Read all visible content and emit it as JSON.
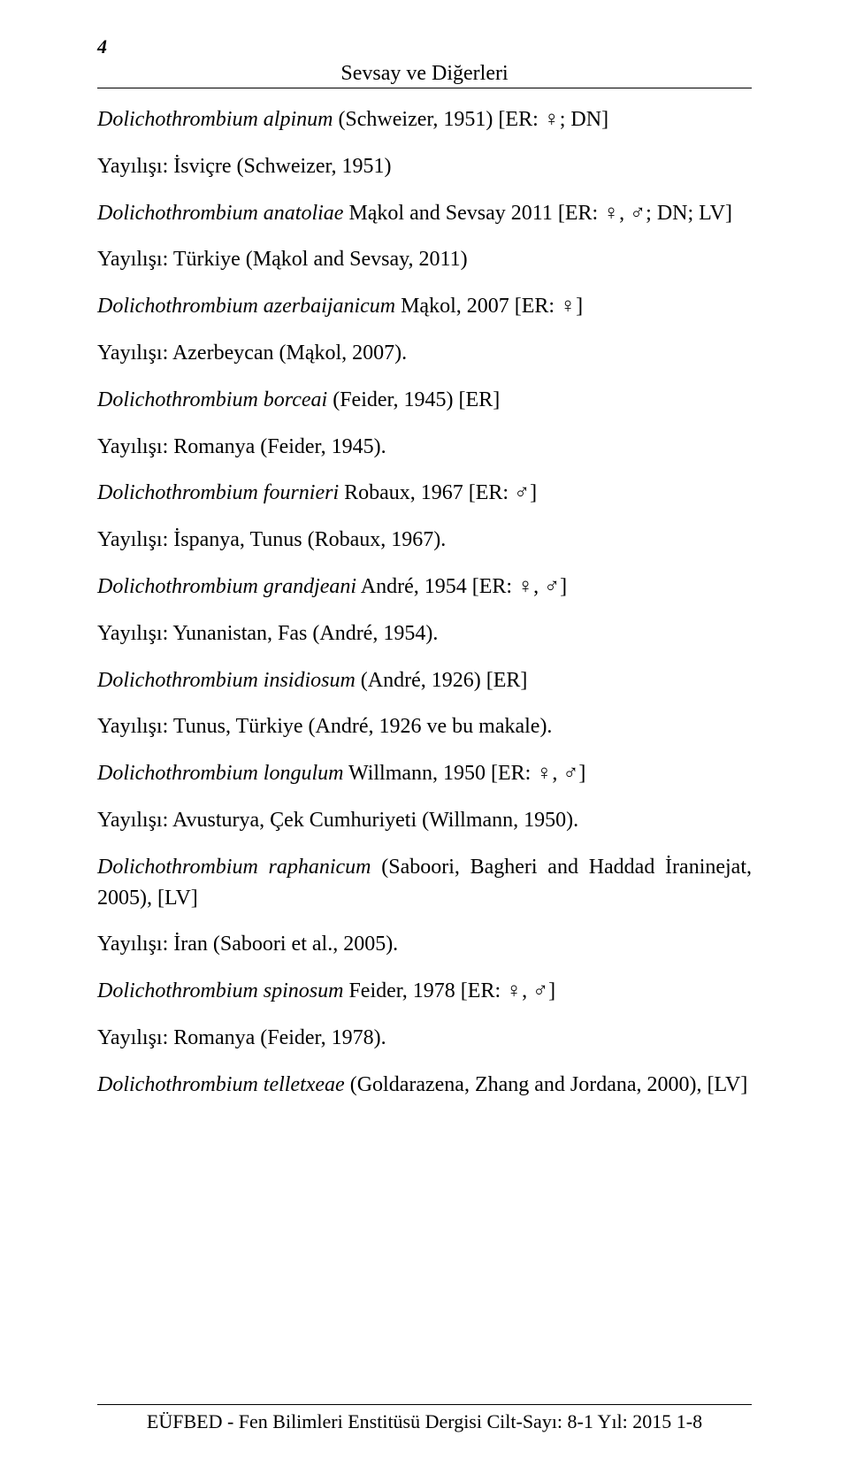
{
  "page_number": "4",
  "running_header": "Sevsay ve Diğerleri",
  "entries": [
    {
      "species": "Dolichothrombium alpinum",
      "rest": " (Schweizer, 1951) [ER: ♀; DN]"
    },
    {
      "plain": "Yayılışı: İsviçre (Schweizer, 1951)"
    },
    {
      "species": "Dolichothrombium anatoliae",
      "rest": " Mąkol and Sevsay 2011 [ER: ♀, ♂; DN; LV]"
    },
    {
      "plain": "Yayılışı: Türkiye (Mąkol and Sevsay, 2011)"
    },
    {
      "species": "Dolichothrombium azerbaijanicum",
      "rest": " Mąkol, 2007 [ER: ♀]"
    },
    {
      "plain": "Yayılışı: Azerbeycan (Mąkol, 2007)."
    },
    {
      "species": "Dolichothrombium borceai",
      "rest": " (Feider, 1945) [ER]"
    },
    {
      "plain": "Yayılışı: Romanya (Feider, 1945)."
    },
    {
      "species": "Dolichothrombium fournieri",
      "rest": " Robaux, 1967 [ER: ♂]"
    },
    {
      "plain": "Yayılışı: İspanya, Tunus (Robaux, 1967)."
    },
    {
      "species": "Dolichothrombium grandjeani",
      "rest": " André, 1954 [ER: ♀, ♂]"
    },
    {
      "plain": "Yayılışı: Yunanistan, Fas (André, 1954)."
    },
    {
      "species": "Dolichothrombium insidiosum",
      "rest": " (André, 1926) [ER]"
    },
    {
      "plain": "Yayılışı: Tunus, Türkiye (André, 1926 ve bu makale)."
    },
    {
      "species": "Dolichothrombium longulum",
      "rest": " Willmann, 1950 [ER: ♀, ♂]"
    },
    {
      "plain": "Yayılışı: Avusturya, Çek Cumhuriyeti (Willmann, 1950)."
    },
    {
      "species": "Dolichothrombium raphanicum",
      "rest": " (Saboori, Bagheri and Haddad İraninejat, 2005), [LV]"
    },
    {
      "plain": "Yayılışı: İran (Saboori et al., 2005)."
    },
    {
      "species": "Dolichothrombium spinosum",
      "rest": " Feider, 1978 [ER: ♀, ♂]"
    },
    {
      "plain": "Yayılışı: Romanya (Feider, 1978)."
    },
    {
      "species": "Dolichothrombium telletxeae",
      "rest": " (Goldarazena, Zhang and Jordana, 2000), [LV]"
    }
  ],
  "footer": "EÜFBED - Fen Bilimleri Enstitüsü Dergisi Cilt-Sayı: 8-1 Yıl: 2015 1-8"
}
